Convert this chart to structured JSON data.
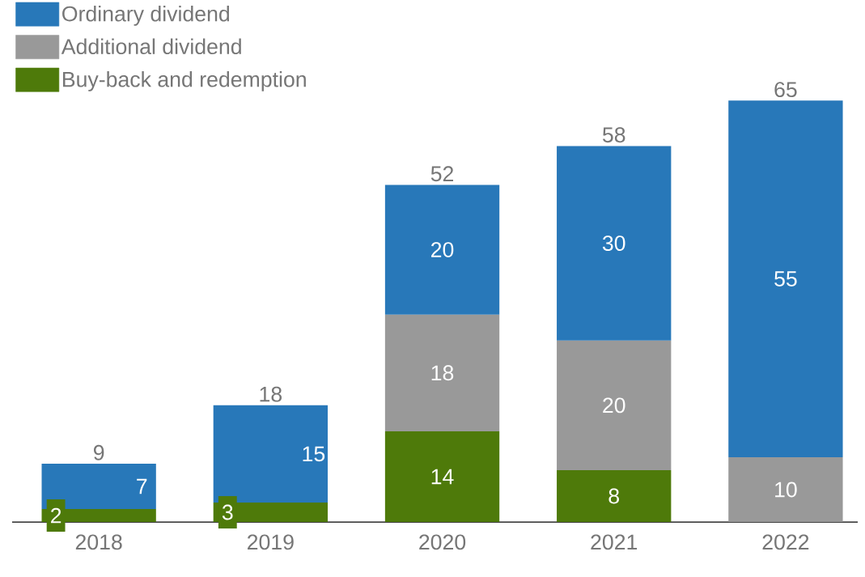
{
  "chart_data": {
    "type": "bar",
    "stacked": true,
    "categories": [
      "2018",
      "2019",
      "2020",
      "2021",
      "2022"
    ],
    "series": [
      {
        "name": "Buy-back and redemption",
        "color": "#4e7a0a",
        "values": [
          2,
          3,
          14,
          8,
          null
        ]
      },
      {
        "name": "Additional dividend",
        "color": "#999999",
        "values": [
          null,
          null,
          18,
          20,
          10
        ]
      },
      {
        "name": "Ordinary dividend",
        "color": "#2878b9",
        "values": [
          7,
          15,
          20,
          30,
          55
        ]
      }
    ],
    "data_labels": true,
    "totals": [
      "9",
      "18",
      "52",
      "58",
      "65"
    ],
    "legend": "top left"
  }
}
